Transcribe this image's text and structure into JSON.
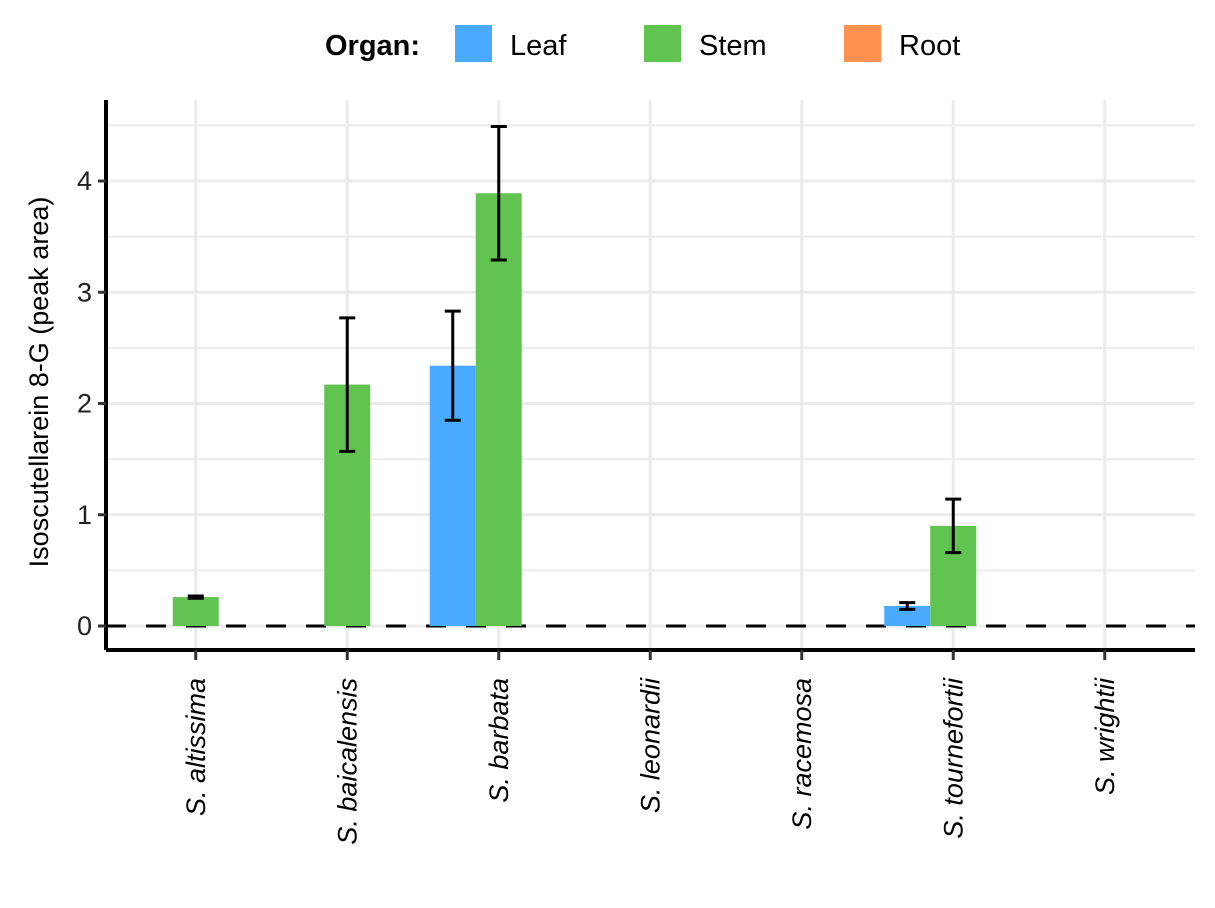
{
  "chart_data": {
    "type": "bar",
    "title": "",
    "xlabel": "",
    "ylabel": "Isoscutellarein 8-G (peak area)",
    "ylim": [
      -0.22,
      4.7
    ],
    "yticks": [
      0,
      1,
      2,
      3,
      4
    ],
    "grid": true,
    "legend": {
      "title": "Organ:",
      "position": "top"
    },
    "categories": [
      "S. altissima",
      "S. baicalensis",
      "S. barbata",
      "S. leonardii",
      "S. racemosa",
      "S. tournefortii",
      "S. wrightii"
    ],
    "series": [
      {
        "name": "Leaf",
        "color": "#4aaaff",
        "values": [
          0,
          0,
          2.34,
          0,
          0,
          0.18,
          0
        ],
        "error": [
          0,
          0,
          0.49,
          0,
          0,
          0.03,
          0
        ]
      },
      {
        "name": "Stem",
        "color": "#62c450",
        "values": [
          0.26,
          2.17,
          3.89,
          0,
          0,
          0.9,
          0
        ],
        "error": [
          0.01,
          0.6,
          0.6,
          0,
          0,
          0.24,
          0
        ]
      },
      {
        "name": "Root",
        "color": "#ff9050",
        "values": [
          0,
          0,
          0,
          0,
          0,
          0,
          0
        ],
        "error": [
          0,
          0,
          0,
          0,
          0,
          0,
          0
        ]
      }
    ],
    "reference_line": {
      "y": 0,
      "style": "dashed"
    }
  }
}
